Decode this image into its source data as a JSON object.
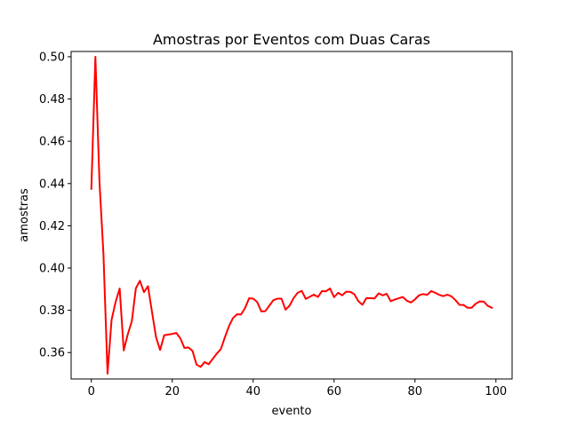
{
  "chart_data": {
    "type": "line",
    "title": "Amostras por Eventos com Duas Caras",
    "xlabel": "evento",
    "ylabel": "amostras",
    "xlim": [
      -5,
      104
    ],
    "ylim": [
      0.3475,
      0.5025
    ],
    "xticks": [
      0,
      20,
      40,
      60,
      80,
      100
    ],
    "yticks": [
      0.36,
      0.38,
      0.4,
      0.42,
      0.44,
      0.46,
      0.48,
      0.5
    ],
    "ytick_labels": [
      "0.36",
      "0.38",
      "0.40",
      "0.42",
      "0.44",
      "0.46",
      "0.48",
      "0.50"
    ],
    "grid": false,
    "series": [
      {
        "color": "#ff0000",
        "x": [
          0,
          1,
          2,
          3,
          4,
          5,
          6,
          7,
          8,
          9,
          10,
          11,
          12,
          13,
          14,
          15,
          16,
          17,
          18,
          19,
          20,
          21,
          22,
          23,
          24,
          25,
          26,
          27,
          28,
          29,
          30,
          31,
          32,
          33,
          34,
          35,
          36,
          37,
          38,
          39,
          40,
          41,
          42,
          43,
          44,
          45,
          46,
          47,
          48,
          49,
          50,
          51,
          52,
          53,
          54,
          55,
          56,
          57,
          58,
          59,
          60,
          61,
          62,
          63,
          64,
          65,
          66,
          67,
          68,
          69,
          70,
          71,
          72,
          73,
          74,
          75,
          76,
          77,
          78,
          79,
          80,
          81,
          82,
          83,
          84,
          85,
          86,
          87,
          88,
          89,
          90,
          91,
          92,
          93,
          94,
          95,
          96,
          97,
          98,
          99
        ],
        "y": [
          0.4375,
          0.5,
          0.4412,
          0.4063,
          0.35,
          0.3755,
          0.384,
          0.3903,
          0.361,
          0.3686,
          0.3748,
          0.3904,
          0.394,
          0.3886,
          0.3914,
          0.3791,
          0.3672,
          0.3612,
          0.3682,
          0.3685,
          0.3688,
          0.3693,
          0.3667,
          0.3622,
          0.3624,
          0.3608,
          0.3543,
          0.3532,
          0.3555,
          0.3545,
          0.357,
          0.3595,
          0.3616,
          0.3672,
          0.3724,
          0.3763,
          0.3781,
          0.378,
          0.3811,
          0.3857,
          0.3855,
          0.3839,
          0.3795,
          0.3796,
          0.3822,
          0.3848,
          0.3855,
          0.3855,
          0.3803,
          0.3822,
          0.3858,
          0.3883,
          0.3892,
          0.3854,
          0.3864,
          0.3874,
          0.3863,
          0.3891,
          0.389,
          0.3903,
          0.3862,
          0.3883,
          0.3871,
          0.3888,
          0.3887,
          0.3876,
          0.3843,
          0.3826,
          0.3858,
          0.3857,
          0.3856,
          0.388,
          0.3871,
          0.3878,
          0.3843,
          0.3851,
          0.3857,
          0.3863,
          0.3845,
          0.3837,
          0.3852,
          0.3871,
          0.3877,
          0.3873,
          0.3891,
          0.3883,
          0.3873,
          0.3867,
          0.3874,
          0.3866,
          0.3848,
          0.3826,
          0.3825,
          0.3812,
          0.3812,
          0.3831,
          0.3842,
          0.3841,
          0.3821,
          0.3812
        ]
      }
    ]
  }
}
